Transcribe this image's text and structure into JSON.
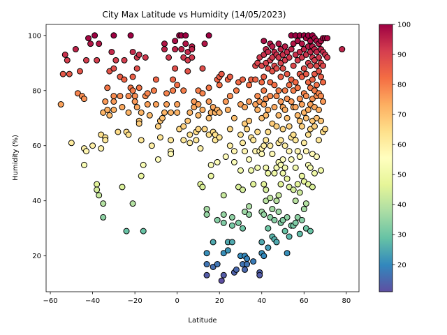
{
  "chart_data": {
    "type": "scatter",
    "title": "City Max Latitude vs Humidity (14/05/2023)",
    "xlabel": "Latitude",
    "ylabel": "Humidity (%)",
    "xlim": [
      -62,
      86
    ],
    "ylim": [
      7,
      104
    ],
    "xticks": [
      -60,
      -40,
      -20,
      0,
      20,
      40,
      60,
      80
    ],
    "yticks": [
      20,
      40,
      60,
      80,
      100
    ],
    "grid": false,
    "marker_edge_color": "#000000",
    "colorbar": {
      "colormap": "Spectral_r",
      "range": [
        11,
        100
      ],
      "ticks": [
        20,
        30,
        40,
        50,
        60,
        70,
        80,
        90,
        100
      ],
      "colors": [
        "#5e4fa2",
        "#3288bd",
        "#66c2a5",
        "#abdda4",
        "#e6f598",
        "#ffffbf",
        "#fee08b",
        "#fdae61",
        "#f46d43",
        "#d53e4f",
        "#9e0142"
      ]
    },
    "points": [
      [
        -55,
        75
      ],
      [
        -54,
        86
      ],
      [
        -53,
        93
      ],
      [
        -52,
        91
      ],
      [
        -51,
        86
      ],
      [
        -50,
        61
      ],
      [
        -48,
        95
      ],
      [
        -47,
        79
      ],
      [
        -46,
        87
      ],
      [
        -45,
        78
      ],
      [
        -44,
        77
      ],
      [
        -44,
        53
      ],
      [
        -44,
        59
      ],
      [
        -43,
        58
      ],
      [
        -43,
        91
      ],
      [
        -42,
        99
      ],
      [
        -41,
        97
      ],
      [
        -40,
        60
      ],
      [
        -39,
        100
      ],
      [
        -38,
        91
      ],
      [
        -38,
        46
      ],
      [
        -38,
        44
      ],
      [
        -37,
        97
      ],
      [
        -37,
        42
      ],
      [
        -36,
        59
      ],
      [
        -36,
        64
      ],
      [
        -35,
        39
      ],
      [
        -35,
        34
      ],
      [
        -35,
        72
      ],
      [
        -34,
        76
      ],
      [
        -34,
        63
      ],
      [
        -34,
        62
      ],
      [
        -33,
        81
      ],
      [
        -33,
        73
      ],
      [
        -32,
        71
      ],
      [
        -32,
        87
      ],
      [
        -31,
        94
      ],
      [
        -30,
        100
      ],
      [
        -30,
        88
      ],
      [
        -30,
        78
      ],
      [
        -30,
        76
      ],
      [
        -30,
        73
      ],
      [
        -29,
        91
      ],
      [
        -28,
        65
      ],
      [
        -27,
        85
      ],
      [
        -27,
        78
      ],
      [
        -26,
        74
      ],
      [
        -26,
        45
      ],
      [
        -25,
        84
      ],
      [
        -25,
        91
      ],
      [
        -24,
        65
      ],
      [
        -24,
        29
      ],
      [
        -23,
        64
      ],
      [
        -23,
        72
      ],
      [
        -23,
        78
      ],
      [
        -22,
        100
      ],
      [
        -22,
        81
      ],
      [
        -21,
        39
      ],
      [
        -21,
        94
      ],
      [
        -21,
        80
      ],
      [
        -21,
        85
      ],
      [
        -20,
        78
      ],
      [
        -20,
        76
      ],
      [
        -19,
        74
      ],
      [
        -19,
        88
      ],
      [
        -19,
        92
      ],
      [
        -18,
        93
      ],
      [
        -18,
        81
      ],
      [
        -18,
        69
      ],
      [
        -18,
        68
      ],
      [
        -17,
        72
      ],
      [
        -17,
        62
      ],
      [
        -17,
        49
      ],
      [
        -16,
        53
      ],
      [
        -16,
        29
      ],
      [
        -15,
        92
      ],
      [
        -15,
        78
      ],
      [
        -14,
        79
      ],
      [
        -14,
        75
      ],
      [
        -13,
        71
      ],
      [
        -12,
        60
      ],
      [
        -11,
        80
      ],
      [
        -10,
        84
      ],
      [
        -10,
        75
      ],
      [
        -9,
        55
      ],
      [
        -9,
        67
      ],
      [
        -8,
        69
      ],
      [
        -8,
        63
      ],
      [
        -7,
        70
      ],
      [
        -6,
        95
      ],
      [
        -6,
        97
      ],
      [
        -6,
        72
      ],
      [
        -5,
        79
      ],
      [
        -5,
        75
      ],
      [
        -4,
        92
      ],
      [
        -3,
        62
      ],
      [
        -3,
        58
      ],
      [
        -3,
        57
      ],
      [
        -3,
        72
      ],
      [
        -2,
        80
      ],
      [
        -2,
        84
      ],
      [
        -1,
        95
      ],
      [
        -1,
        98
      ],
      [
        -1,
        88
      ],
      [
        0,
        82
      ],
      [
        0,
        75
      ],
      [
        0,
        72
      ],
      [
        1,
        100
      ],
      [
        1,
        66
      ],
      [
        2,
        100
      ],
      [
        2,
        95
      ],
      [
        3,
        80
      ],
      [
        3,
        92
      ],
      [
        3,
        67
      ],
      [
        3,
        62
      ],
      [
        4,
        100
      ],
      [
        4,
        97
      ],
      [
        5,
        94
      ],
      [
        5,
        91
      ],
      [
        5,
        87
      ],
      [
        5,
        69
      ],
      [
        6,
        72
      ],
      [
        6,
        64
      ],
      [
        6,
        61
      ],
      [
        7,
        96
      ],
      [
        7,
        95
      ],
      [
        7,
        92
      ],
      [
        8,
        76
      ],
      [
        8,
        74
      ],
      [
        9,
        65
      ],
      [
        9,
        62
      ],
      [
        10,
        80
      ],
      [
        10,
        75
      ],
      [
        10,
        71
      ],
      [
        10,
        66
      ],
      [
        11,
        59
      ],
      [
        11,
        46
      ],
      [
        12,
        45
      ],
      [
        12,
        73
      ],
      [
        12,
        79
      ],
      [
        12,
        88
      ],
      [
        13,
        97
      ],
      [
        13,
        66
      ],
      [
        14,
        37
      ],
      [
        14,
        35
      ],
      [
        14,
        21
      ],
      [
        14,
        17
      ],
      [
        14,
        13
      ],
      [
        15,
        81
      ],
      [
        15,
        76
      ],
      [
        15,
        70
      ],
      [
        15,
        64
      ],
      [
        15,
        100
      ],
      [
        16,
        72
      ],
      [
        16,
        53
      ],
      [
        16,
        49
      ],
      [
        17,
        74
      ],
      [
        17,
        65
      ],
      [
        17,
        25
      ],
      [
        17,
        16
      ],
      [
        18,
        72
      ],
      [
        18,
        64
      ],
      [
        18,
        62
      ],
      [
        19,
        84
      ],
      [
        19,
        73
      ],
      [
        19,
        54
      ],
      [
        19,
        33
      ],
      [
        19,
        17
      ],
      [
        20,
        85
      ],
      [
        20,
        82
      ],
      [
        20,
        72
      ],
      [
        20,
        63
      ],
      [
        21,
        86
      ],
      [
        21,
        11
      ],
      [
        22,
        42
      ],
      [
        22,
        32
      ],
      [
        22,
        35
      ],
      [
        22,
        21
      ],
      [
        22,
        13
      ],
      [
        23,
        76
      ],
      [
        23,
        56
      ],
      [
        24,
        84
      ],
      [
        24,
        73
      ],
      [
        24,
        22
      ],
      [
        24,
        25
      ],
      [
        25,
        85
      ],
      [
        25,
        78
      ],
      [
        25,
        66
      ],
      [
        25,
        60
      ],
      [
        26,
        34
      ],
      [
        26,
        31
      ],
      [
        26,
        25
      ],
      [
        27,
        70
      ],
      [
        27,
        58
      ],
      [
        27,
        54
      ],
      [
        27,
        14
      ],
      [
        28,
        80
      ],
      [
        28,
        15
      ],
      [
        29,
        83
      ],
      [
        29,
        45
      ],
      [
        29,
        32
      ],
      [
        30,
        75
      ],
      [
        30,
        64
      ],
      [
        30,
        51
      ],
      [
        30,
        20
      ],
      [
        31,
        84
      ],
      [
        31,
        61
      ],
      [
        31,
        44
      ],
      [
        31,
        17
      ],
      [
        31,
        30
      ],
      [
        32,
        74
      ],
      [
        32,
        68
      ],
      [
        32,
        58
      ],
      [
        32,
        36
      ],
      [
        32,
        20
      ],
      [
        32,
        15
      ],
      [
        33,
        66
      ],
      [
        33,
        19
      ],
      [
        33,
        17
      ],
      [
        34,
        82
      ],
      [
        34,
        76
      ],
      [
        34,
        69
      ],
      [
        34,
        55
      ],
      [
        34,
        38
      ],
      [
        34,
        35
      ],
      [
        35,
        84
      ],
      [
        35,
        63
      ],
      [
        35,
        51
      ],
      [
        36,
        62
      ],
      [
        36,
        46
      ],
      [
        36,
        18
      ],
      [
        37,
        89
      ],
      [
        37,
        84
      ],
      [
        37,
        75
      ],
      [
        37,
        58
      ],
      [
        38,
        90
      ],
      [
        38,
        78
      ],
      [
        38,
        73
      ],
      [
        38,
        65
      ],
      [
        38,
        52
      ],
      [
        39,
        92
      ],
      [
        39,
        76
      ],
      [
        39,
        58
      ],
      [
        39,
        14
      ],
      [
        39,
        13
      ],
      [
        40,
        89
      ],
      [
        40,
        83
      ],
      [
        40,
        70
      ],
      [
        40,
        59
      ],
      [
        40,
        57
      ],
      [
        40,
        36
      ],
      [
        40,
        25
      ],
      [
        40,
        21
      ],
      [
        41,
        98
      ],
      [
        41,
        93
      ],
      [
        41,
        85
      ],
      [
        41,
        80
      ],
      [
        41,
        75
      ],
      [
        41,
        60
      ],
      [
        41,
        46
      ],
      [
        41,
        35
      ],
      [
        41,
        20
      ],
      [
        42,
        95
      ],
      [
        42,
        90
      ],
      [
        42,
        77
      ],
      [
        42,
        71
      ],
      [
        42,
        62
      ],
      [
        42,
        52
      ],
      [
        42,
        44
      ],
      [
        42,
        40
      ],
      [
        43,
        94
      ],
      [
        43,
        88
      ],
      [
        43,
        73
      ],
      [
        43,
        65
      ],
      [
        43,
        50
      ],
      [
        43,
        30
      ],
      [
        43,
        23
      ],
      [
        44,
        97
      ],
      [
        44,
        91
      ],
      [
        44,
        83
      ],
      [
        44,
        78
      ],
      [
        44,
        60
      ],
      [
        44,
        41
      ],
      [
        44,
        34
      ],
      [
        45,
        96
      ],
      [
        45,
        92
      ],
      [
        45,
        87
      ],
      [
        45,
        68
      ],
      [
        45,
        57
      ],
      [
        45,
        37
      ],
      [
        45,
        27
      ],
      [
        46,
        94
      ],
      [
        46,
        89
      ],
      [
        46,
        82
      ],
      [
        46,
        74
      ],
      [
        46,
        50
      ],
      [
        46,
        33
      ],
      [
        46,
        26
      ],
      [
        47,
        93
      ],
      [
        47,
        88
      ],
      [
        47,
        78
      ],
      [
        47,
        67
      ],
      [
        47,
        52
      ],
      [
        47,
        40
      ],
      [
        47,
        25
      ],
      [
        48,
        97
      ],
      [
        48,
        92
      ],
      [
        48,
        80
      ],
      [
        48,
        71
      ],
      [
        48,
        61
      ],
      [
        48,
        54
      ],
      [
        48,
        42
      ],
      [
        48,
        36
      ],
      [
        49,
        95
      ],
      [
        49,
        90
      ],
      [
        49,
        85
      ],
      [
        49,
        76
      ],
      [
        49,
        62
      ],
      [
        49,
        53
      ],
      [
        49,
        46
      ],
      [
        49,
        32
      ],
      [
        50,
        93
      ],
      [
        50,
        88
      ],
      [
        50,
        74
      ],
      [
        50,
        66
      ],
      [
        50,
        55
      ],
      [
        50,
        50
      ],
      [
        50,
        33
      ],
      [
        51,
        96
      ],
      [
        51,
        91
      ],
      [
        51,
        80
      ],
      [
        51,
        73
      ],
      [
        51,
        60
      ],
      [
        51,
        52
      ],
      [
        51,
        29
      ],
      [
        52,
        94
      ],
      [
        52,
        86
      ],
      [
        52,
        77
      ],
      [
        52,
        70
      ],
      [
        52,
        48
      ],
      [
        52,
        34
      ],
      [
        52,
        21
      ],
      [
        53,
        92
      ],
      [
        53,
        82
      ],
      [
        53,
        67
      ],
      [
        53,
        58
      ],
      [
        53,
        45
      ],
      [
        53,
        27
      ],
      [
        54,
        100
      ],
      [
        54,
        95
      ],
      [
        54,
        84
      ],
      [
        54,
        76
      ],
      [
        54,
        63
      ],
      [
        54,
        55
      ],
      [
        54,
        31
      ],
      [
        55,
        97
      ],
      [
        55,
        89
      ],
      [
        55,
        80
      ],
      [
        55,
        74
      ],
      [
        55,
        64
      ],
      [
        55,
        44
      ],
      [
        55,
        31
      ],
      [
        56,
        100
      ],
      [
        56,
        93
      ],
      [
        56,
        83
      ],
      [
        56,
        74
      ],
      [
        56,
        62
      ],
      [
        56,
        52
      ],
      [
        56,
        40
      ],
      [
        56,
        32
      ],
      [
        57,
        98
      ],
      [
        57,
        91
      ],
      [
        57,
        81
      ],
      [
        57,
        71
      ],
      [
        57,
        58
      ],
      [
        57,
        46
      ],
      [
        57,
        34
      ],
      [
        58,
        100
      ],
      [
        58,
        94
      ],
      [
        58,
        86
      ],
      [
        58,
        77
      ],
      [
        58,
        69
      ],
      [
        58,
        56
      ],
      [
        58,
        43
      ],
      [
        58,
        28
      ],
      [
        59,
        97
      ],
      [
        59,
        92
      ],
      [
        59,
        85
      ],
      [
        59,
        75
      ],
      [
        59,
        67
      ],
      [
        59,
        49
      ],
      [
        59,
        33
      ],
      [
        60,
        100
      ],
      [
        60,
        95
      ],
      [
        60,
        88
      ],
      [
        60,
        79
      ],
      [
        60,
        72
      ],
      [
        60,
        61
      ],
      [
        60,
        47
      ],
      [
        60,
        37
      ],
      [
        61,
        99
      ],
      [
        61,
        93
      ],
      [
        61,
        86
      ],
      [
        61,
        78
      ],
      [
        61,
        70
      ],
      [
        61,
        58
      ],
      [
        61,
        39
      ],
      [
        61,
        30
      ],
      [
        62,
        100
      ],
      [
        62,
        96
      ],
      [
        62,
        90
      ],
      [
        62,
        83
      ],
      [
        62,
        73
      ],
      [
        62,
        64
      ],
      [
        62,
        53
      ],
      [
        62,
        46
      ],
      [
        63,
        98
      ],
      [
        63,
        94
      ],
      [
        63,
        89
      ],
      [
        63,
        81
      ],
      [
        63,
        75
      ],
      [
        63,
        66
      ],
      [
        63,
        52
      ],
      [
        63,
        29
      ],
      [
        64,
        100
      ],
      [
        64,
        96
      ],
      [
        64,
        92
      ],
      [
        64,
        84
      ],
      [
        64,
        77
      ],
      [
        64,
        69
      ],
      [
        64,
        57
      ],
      [
        64,
        45
      ],
      [
        65,
        99
      ],
      [
        65,
        95
      ],
      [
        65,
        91
      ],
      [
        65,
        86
      ],
      [
        65,
        80
      ],
      [
        65,
        74
      ],
      [
        65,
        67
      ],
      [
        65,
        50
      ],
      [
        66,
        98
      ],
      [
        66,
        94
      ],
      [
        66,
        89
      ],
      [
        66,
        82
      ],
      [
        66,
        78
      ],
      [
        66,
        70
      ],
      [
        66,
        56
      ],
      [
        67,
        97
      ],
      [
        67,
        92
      ],
      [
        67,
        87
      ],
      [
        67,
        79
      ],
      [
        67,
        73
      ],
      [
        67,
        62
      ],
      [
        68,
        98
      ],
      [
        68,
        95
      ],
      [
        68,
        90
      ],
      [
        68,
        85
      ],
      [
        68,
        78
      ],
      [
        68,
        69
      ],
      [
        68,
        51
      ],
      [
        69,
        99
      ],
      [
        69,
        94
      ],
      [
        69,
        89
      ],
      [
        69,
        83
      ],
      [
        69,
        76
      ],
      [
        69,
        65
      ],
      [
        70,
        99
      ],
      [
        70,
        93
      ],
      [
        70,
        66
      ],
      [
        71,
        99
      ],
      [
        71,
        92
      ],
      [
        78,
        95
      ]
    ]
  }
}
